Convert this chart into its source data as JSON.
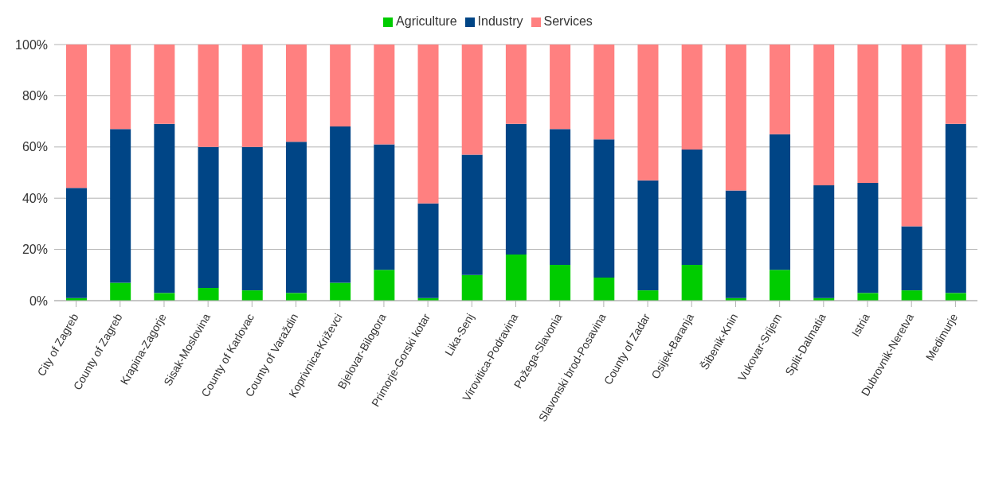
{
  "chart_data": {
    "type": "bar",
    "stacked": true,
    "categories": [
      "City of Zagreb",
      "County of Zagreb",
      "Krapina-Zagorje",
      "Sisak-Moslovina",
      "County of Karlovac",
      "County of Varaždin",
      "Koprivnica-Križevci",
      "Bjelovar-Bilogora",
      "Primorje-Gorski kotar",
      "Lika-Senj",
      "Virovitica-Podravina",
      "Požega-Slavonia",
      "Slavonski brod-Posavina",
      "County of Zadar",
      "Osijek-Baranja",
      "Šibenik-Knin",
      "Vukovar-Srijem",
      "Split-Dalmatia",
      "Istria",
      "Dubrovnik-Neretva",
      "Medimurje"
    ],
    "series": [
      {
        "name": "Agriculture",
        "color": "#00cc00",
        "values": [
          1,
          7,
          3,
          5,
          4,
          3,
          7,
          12,
          1,
          10,
          18,
          14,
          9,
          4,
          14,
          1,
          12,
          1,
          3,
          4,
          3
        ]
      },
      {
        "name": "Industry",
        "color": "#004586",
        "values": [
          43,
          60,
          66,
          55,
          56,
          59,
          61,
          49,
          37,
          47,
          51,
          53,
          54,
          43,
          45,
          42,
          53,
          44,
          43,
          25,
          66
        ]
      },
      {
        "name": "Services",
        "color": "#ff8080",
        "values": [
          56,
          33,
          31,
          40,
          40,
          38,
          32,
          39,
          62,
          43,
          31,
          33,
          37,
          53,
          41,
          57,
          35,
          55,
          54,
          71,
          31
        ]
      }
    ],
    "ylim": [
      0,
      100
    ],
    "yticks": [
      {
        "value": 0,
        "label": "0%"
      },
      {
        "value": 20,
        "label": "20%"
      },
      {
        "value": 40,
        "label": "40%"
      },
      {
        "value": 60,
        "label": "60%"
      },
      {
        "value": 80,
        "label": "80%"
      },
      {
        "value": 100,
        "label": "100%"
      }
    ],
    "grid": "y",
    "legend": "top"
  }
}
